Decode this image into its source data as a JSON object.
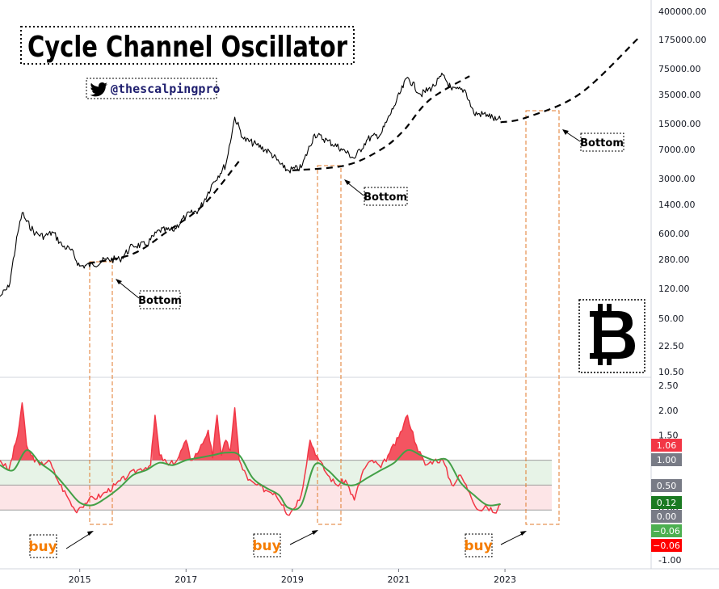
{
  "chart_data": [
    {
      "type": "line",
      "title": "Cycle Channel Oscillator",
      "handle": "@thescalpingpro",
      "y_scale": "log",
      "yticks": [
        "400000.00",
        "175000.00",
        "75000.00",
        "35000.00",
        "15000.00",
        "7000.00",
        "3000.00",
        "1400.00",
        "600.00",
        "280.00",
        "120.00",
        "50.00",
        "22.50",
        "10.50"
      ],
      "ylim": [
        10.5,
        400000
      ],
      "xticks": [
        "2015",
        "2017",
        "2019",
        "2021",
        "2023"
      ],
      "xlim": [
        "2013-07",
        "2025-10"
      ],
      "series": [
        {
          "x": [
            "2013-07",
            "2013-09",
            "2013-11",
            "2013-12",
            "2014-01",
            "2014-03",
            "2014-05",
            "2014-07",
            "2014-09",
            "2014-11",
            "2015-01",
            "2015-04",
            "2015-07",
            "2015-10",
            "2016-01",
            "2016-04",
            "2016-07",
            "2016-10",
            "2017-01",
            "2017-04",
            "2017-07",
            "2017-10",
            "2017-12",
            "2018-02",
            "2018-05",
            "2018-08",
            "2018-11",
            "2018-12",
            "2019-03",
            "2019-06",
            "2019-09",
            "2019-12",
            "2020-03",
            "2020-06",
            "2020-09",
            "2020-12",
            "2021-03",
            "2021-06",
            "2021-09",
            "2021-11",
            "2022-01",
            "2022-04",
            "2022-06",
            "2022-09",
            "2022-11",
            "2022-12"
          ],
          "values": [
            95,
            125,
            600,
            1100,
            850,
            600,
            550,
            620,
            420,
            370,
            230,
            240,
            280,
            280,
            420,
            430,
            660,
            650,
            1000,
            1200,
            2600,
            4500,
            18000,
            9500,
            8000,
            6400,
            4100,
            3800,
            4100,
            11000,
            9000,
            7200,
            5400,
            9500,
            11000,
            25000,
            58000,
            35000,
            45000,
            62000,
            40000,
            40000,
            20000,
            19500,
            16500,
            16800
          ]
        }
      ],
      "cycle_curve": {
        "x": [
          "2015-03",
          "2016-01",
          "2016-09",
          "2017-05",
          "2018-01",
          "2019-01",
          "2020-01",
          "2020-09",
          "2021-02",
          "2021-08",
          "2022-05",
          "2022-12",
          "2023-06",
          "2024-06",
          "2025-07"
        ],
        "values": [
          250,
          330,
          650,
          1400,
          5000,
          3800,
          4400,
          7000,
          12000,
          30000,
          60000,
          15500,
          18000,
          36000,
          180000
        ]
      },
      "annotations": [
        "Bottom",
        "Bottom",
        "Bottom"
      ]
    },
    {
      "type": "area",
      "yticks": [
        "2.50",
        "2.00",
        "1.50",
        "1.00",
        "0.50",
        "0.00",
        "-1.00"
      ],
      "ylim": [
        -1.0,
        2.5
      ],
      "bands": {
        "green": [
          0.5,
          1.0
        ],
        "red": [
          0.0,
          0.5
        ]
      },
      "series": [
        {
          "name": "",
          "color": "#f23645",
          "x": [
            "2013-07",
            "2013-09",
            "2013-11",
            "2013-12",
            "2014-01",
            "2014-02",
            "2014-04",
            "2014-06",
            "2014-08",
            "2014-10",
            "2014-12",
            "2015-01",
            "2015-03",
            "2015-06",
            "2015-09",
            "2015-12",
            "2016-02",
            "2016-05",
            "2016-06",
            "2016-07",
            "2016-09",
            "2016-11",
            "2017-01",
            "2017-02",
            "2017-04",
            "2017-06",
            "2017-07",
            "2017-08",
            "2017-09",
            "2017-10",
            "2017-11",
            "2017-12",
            "2018-01",
            "2018-03",
            "2018-05",
            "2018-07",
            "2018-09",
            "2018-11",
            "2018-12",
            "2019-01",
            "2019-03",
            "2019-05",
            "2019-07",
            "2019-09",
            "2019-11",
            "2020-01",
            "2020-03",
            "2020-05",
            "2020-07",
            "2020-09",
            "2020-11",
            "2021-01",
            "2021-03",
            "2021-05",
            "2021-07",
            "2021-09",
            "2021-11",
            "2022-01",
            "2022-03",
            "2022-05",
            "2022-07",
            "2022-09",
            "2022-11",
            "2022-12"
          ],
          "values": [
            1.0,
            0.8,
            1.5,
            2.15,
            1.3,
            1.1,
            0.9,
            1.0,
            0.6,
            0.3,
            -0.02,
            0.05,
            0.2,
            0.3,
            0.5,
            0.7,
            0.8,
            0.9,
            1.9,
            1.1,
            0.9,
            1.0,
            1.4,
            1.0,
            1.2,
            1.6,
            1.05,
            1.9,
            1.1,
            1.4,
            1.2,
            2.05,
            1.0,
            0.6,
            0.5,
            0.4,
            0.35,
            0.1,
            -0.1,
            0.0,
            0.3,
            1.4,
            1.0,
            0.7,
            0.5,
            0.6,
            0.2,
            0.8,
            1.0,
            0.85,
            1.15,
            1.45,
            1.9,
            1.3,
            0.9,
            1.0,
            1.0,
            0.5,
            0.7,
            0.35,
            0.0,
            0.05,
            -0.06,
            0.12
          ]
        },
        {
          "name": "",
          "color": "#43a047",
          "x": [
            "2013-07",
            "2013-10",
            "2014-01",
            "2014-04",
            "2014-07",
            "2014-10",
            "2015-01",
            "2015-04",
            "2015-07",
            "2015-10",
            "2016-01",
            "2016-04",
            "2016-07",
            "2016-10",
            "2017-01",
            "2017-04",
            "2017-07",
            "2017-10",
            "2018-01",
            "2018-04",
            "2018-07",
            "2018-10",
            "2018-12",
            "2019-03",
            "2019-06",
            "2019-09",
            "2019-12",
            "2020-03",
            "2020-06",
            "2020-09",
            "2020-12",
            "2021-03",
            "2021-06",
            "2021-09",
            "2021-12",
            "2022-03",
            "2022-06",
            "2022-09",
            "2022-12"
          ],
          "values": [
            0.9,
            0.8,
            1.2,
            0.95,
            0.75,
            0.45,
            0.15,
            0.1,
            0.25,
            0.45,
            0.7,
            0.8,
            0.95,
            0.9,
            1.0,
            1.05,
            1.1,
            1.15,
            1.1,
            0.65,
            0.45,
            0.3,
            0.05,
            0.1,
            0.9,
            0.8,
            0.55,
            0.5,
            0.65,
            0.8,
            0.95,
            1.2,
            1.1,
            1.0,
            1.0,
            0.55,
            0.3,
            0.1,
            0.12
          ]
        }
      ],
      "tags": [
        {
          "text": "1.06",
          "color": "#f23645"
        },
        {
          "text": "1.00",
          "color": "#787b86"
        },
        {
          "text": "0.50",
          "color": "#787b86"
        },
        {
          "text": "0.12",
          "color": "#1b7a22"
        },
        {
          "text": "0.00",
          "color": "#787b86"
        },
        {
          "text": "−0.06",
          "color": "#4caf50"
        },
        {
          "text": "−0.06",
          "color": "#ff0000"
        }
      ],
      "annotations": [
        "buy",
        "buy",
        "buy"
      ]
    }
  ]
}
